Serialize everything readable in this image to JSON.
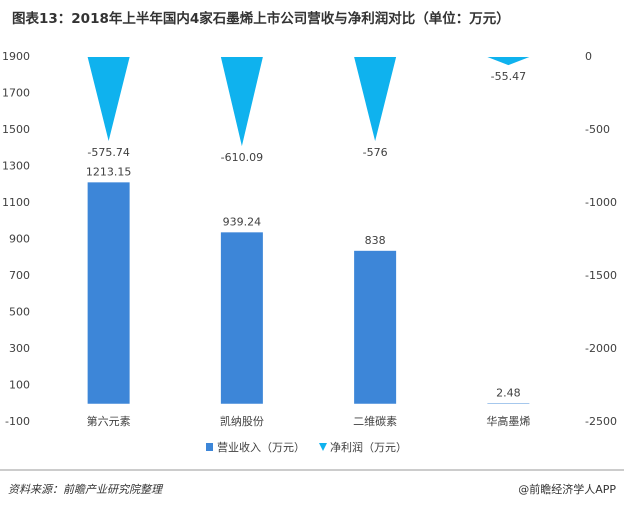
{
  "chart_data": {
    "type": "bar",
    "title": "图表13：2018年上半年国内4家石墨烯上市公司营收与净利润对比（单位：万元）",
    "categories": [
      "第六元素",
      "凯纳股份",
      "二维碳素",
      "华高墨烯"
    ],
    "series": [
      {
        "name": "营业收入（万元）",
        "color": "#3d86d8",
        "type": "bar",
        "values": [
          1213.15,
          939.24,
          838,
          2.48
        ]
      },
      {
        "name": "净利润（万元）",
        "color": "#0fb2ee",
        "type": "cone",
        "axis": "y2",
        "values": [
          -575.74,
          -610.09,
          -576,
          -55.47
        ]
      }
    ],
    "ylim": [
      -100,
      1900
    ],
    "yticks": [
      -100,
      100,
      300,
      500,
      700,
      900,
      1100,
      1300,
      1500,
      1700,
      1900
    ],
    "y2lim": [
      -2500,
      0
    ],
    "y2ticks": [
      -2500,
      -2000,
      -1500,
      -1000,
      -500,
      0
    ],
    "source": "资料来源：前瞻产业研究院整理",
    "brand": "@前瞻经济学人APP"
  }
}
